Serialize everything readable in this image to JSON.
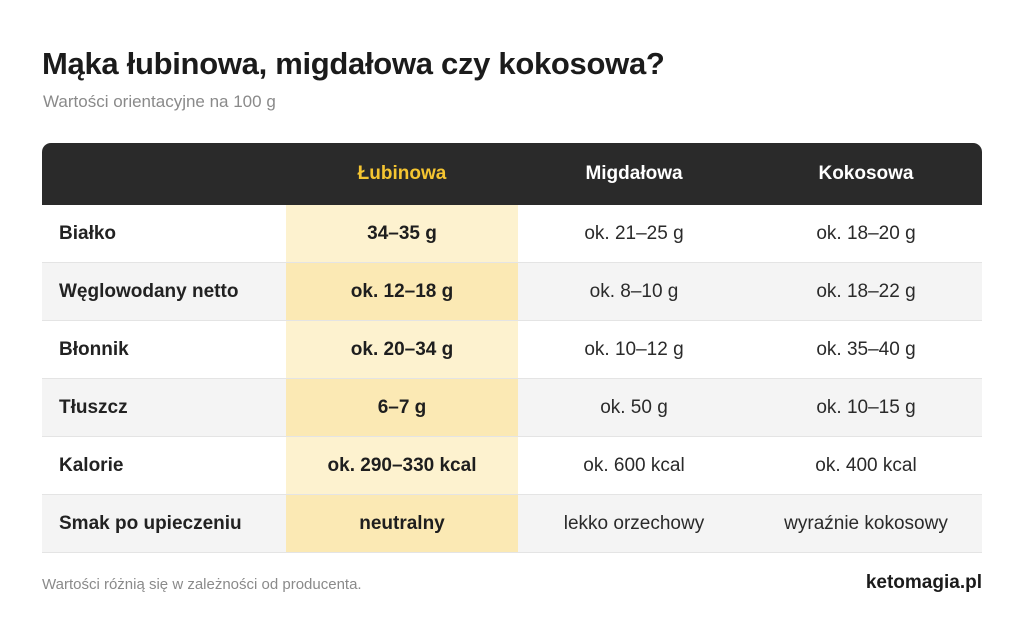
{
  "title": "Mąka łubinowa, migdałowa czy kokosowa?",
  "subtitle": "Wartości orientacyjne na 100 g",
  "table": {
    "headers": [
      "",
      "Łubinowa",
      "Migdałowa",
      "Kokosowa"
    ],
    "rows": [
      [
        "Białko",
        "34–35 g",
        "ok. 21–25 g",
        "ok. 18–20 g"
      ],
      [
        "Węglowodany netto",
        "ok. 12–18 g",
        "ok. 8–10 g",
        "ok. 18–22 g"
      ],
      [
        "Błonnik",
        "ok. 20–34 g",
        "ok. 10–12 g",
        "ok. 35–40 g"
      ],
      [
        "Tłuszcz",
        "6–7 g",
        "ok. 50 g",
        "ok. 10–15 g"
      ],
      [
        "Kalorie",
        "ok. 290–330 kcal",
        "ok. 600 kcal",
        "ok. 400 kcal"
      ],
      [
        "Smak po upieczeniu",
        "neutralny",
        "lekko orzechowy",
        "wyraźnie kokosowy"
      ]
    ]
  },
  "footnote": "Wartości różnią się w zależności od producenta.",
  "brand": "ketomagia.pl",
  "colors": {
    "header_bg": "#2a2a2a",
    "highlight_header": "#f5c531",
    "highlight_column": "#fdf2cf",
    "highlight_column_alt": "#fbe9b4"
  }
}
